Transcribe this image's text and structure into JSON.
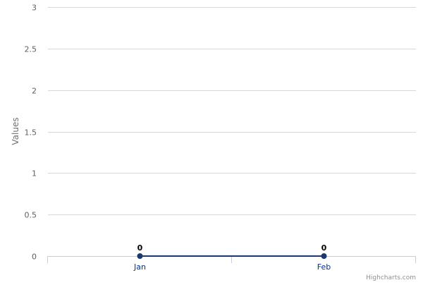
{
  "chart_data": {
    "type": "line",
    "categories": [
      "Jan",
      "Feb"
    ],
    "series": [
      {
        "values": [
          0,
          0
        ]
      }
    ],
    "title": "",
    "xlabel": "",
    "ylabel": "Values",
    "ylim": [
      0,
      3
    ],
    "yticks": [
      "0",
      "0.5",
      "1",
      "1.5",
      "2",
      "2.5",
      "3"
    ],
    "data_labels": [
      "0",
      "0"
    ],
    "grid": true,
    "series_color": "#1a3a6e",
    "grid_color": "#d8d8d8",
    "axis_color": "#c0d0e0"
  },
  "credits": {
    "text": "Highcharts.com"
  }
}
